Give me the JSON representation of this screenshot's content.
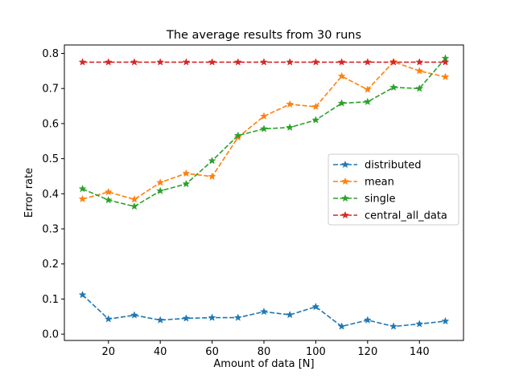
{
  "chart_data": {
    "type": "line",
    "title": "The average results from 30 runs",
    "xlabel": "Amount of data [N]",
    "ylabel": "Error rate",
    "xlim": [
      3,
      157
    ],
    "ylim": [
      -0.018,
      0.824
    ],
    "xticks": [
      20,
      40,
      60,
      80,
      100,
      120,
      140
    ],
    "yticks": [
      0.0,
      0.1,
      0.2,
      0.3,
      0.4,
      0.5,
      0.6,
      0.7,
      0.8
    ],
    "grid": false,
    "legend_position": "center-right",
    "x": [
      10,
      20,
      30,
      40,
      50,
      60,
      70,
      80,
      90,
      100,
      110,
      120,
      130,
      140,
      150
    ],
    "series": [
      {
        "name": "distributed",
        "color": "#1f77b4",
        "values": [
          0.112,
          0.043,
          0.054,
          0.04,
          0.045,
          0.047,
          0.047,
          0.064,
          0.055,
          0.078,
          0.022,
          0.04,
          0.022,
          0.029,
          0.037
        ]
      },
      {
        "name": "mean",
        "color": "#ff7f0e",
        "values": [
          0.385,
          0.405,
          0.384,
          0.432,
          0.458,
          0.449,
          0.561,
          0.621,
          0.655,
          0.648,
          0.735,
          0.697,
          0.776,
          0.75,
          0.733
        ]
      },
      {
        "name": "single",
        "color": "#2ca02c",
        "values": [
          0.414,
          0.382,
          0.364,
          0.408,
          0.428,
          0.494,
          0.566,
          0.585,
          0.589,
          0.61,
          0.658,
          0.662,
          0.703,
          0.7,
          0.786
        ]
      },
      {
        "name": "central_all_data",
        "color": "#d62728",
        "values": [
          0.775,
          0.775,
          0.775,
          0.775,
          0.775,
          0.775,
          0.775,
          0.775,
          0.775,
          0.775,
          0.775,
          0.775,
          0.775,
          0.775,
          0.775
        ]
      }
    ]
  }
}
